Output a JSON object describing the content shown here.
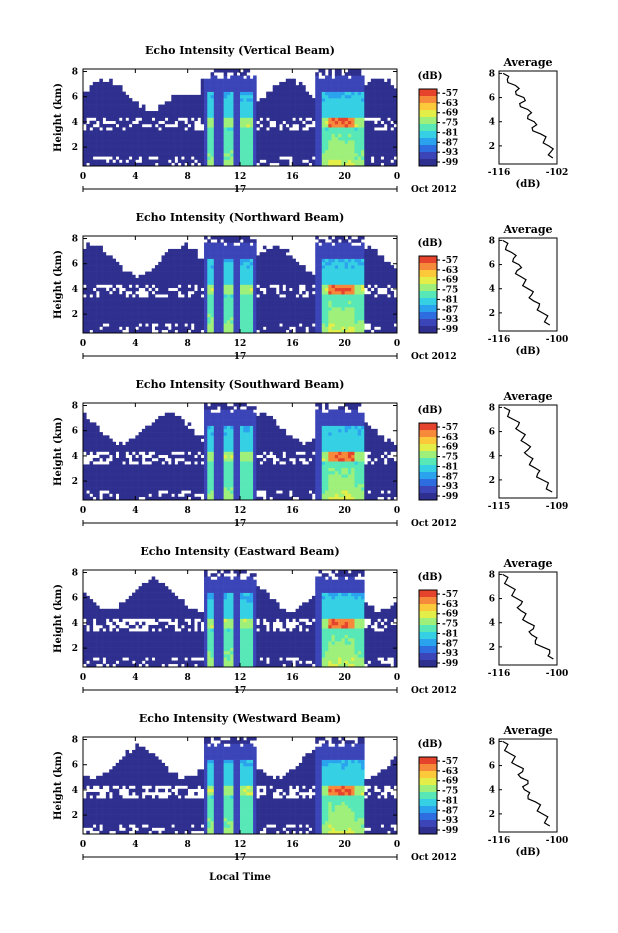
{
  "figure": {
    "xlabel": "Local Time",
    "month_label": "Oct 2012",
    "day_label": "17",
    "colorbar_unit": "(dB)",
    "avg_title": "Average"
  },
  "chart_data": [
    {
      "type": "heatmap",
      "title": "Echo Intensity (Vertical Beam)",
      "ylabel": "Height (km)",
      "xticks": [
        "0",
        "4",
        "8",
        "12",
        "16",
        "20",
        "0"
      ],
      "yticks": [
        "2",
        "4",
        "6",
        "8"
      ],
      "xlim": [
        0,
        24
      ],
      "ylim": [
        0.5,
        8.2
      ],
      "colorbar": {
        "unit": "(dB)",
        "ticks": [
          "-57",
          "-63",
          "-69",
          "-75",
          "-81",
          "-87",
          "-93",
          "-99"
        ]
      },
      "profile": {
        "title": "Average",
        "xlabel": "(dB)",
        "xticks": [
          "-116",
          "-102"
        ],
        "xlim": [
          -116,
          -102
        ],
        "yticks": [
          "2",
          "4",
          "6",
          "8"
        ],
        "heights": [
          1,
          1.5,
          2,
          2.5,
          3,
          3.5,
          4,
          4.5,
          5,
          5.5,
          6,
          6.5,
          7,
          7.5,
          8
        ],
        "values": [
          -103,
          -103.5,
          -104,
          -105,
          -106,
          -108,
          -107.5,
          -109,
          -109,
          -111,
          -110,
          -112,
          -112,
          -114,
          -115
        ]
      }
    },
    {
      "type": "heatmap",
      "title": "Echo Intensity (Northward Beam)",
      "ylabel": "Height (km)",
      "xticks": [
        "0",
        "4",
        "8",
        "12",
        "16",
        "20",
        "0"
      ],
      "yticks": [
        "2",
        "4",
        "6",
        "8"
      ],
      "xlim": [
        0,
        24
      ],
      "ylim": [
        0.5,
        8.2
      ],
      "colorbar": {
        "unit": "(dB)",
        "ticks": [
          "-57",
          "-63",
          "-69",
          "-75",
          "-81",
          "-87",
          "-93",
          "-99"
        ]
      },
      "profile": {
        "title": "Average",
        "xlabel": "(dB)",
        "xticks": [
          "-116",
          "-100"
        ],
        "xlim": [
          -116,
          -100
        ],
        "yticks": [
          "2",
          "4",
          "6",
          "8"
        ],
        "heights": [
          1,
          1.5,
          2,
          2.5,
          3,
          3.5,
          4,
          4.5,
          5,
          5.5,
          6,
          6.5,
          7,
          7.5,
          8
        ],
        "values": [
          -102,
          -103,
          -104,
          -105,
          -106.5,
          -107,
          -108,
          -109,
          -110,
          -111,
          -110.5,
          -112,
          -112.5,
          -114,
          -115
        ]
      }
    },
    {
      "type": "heatmap",
      "title": "Echo Intensity (Southward Beam)",
      "ylabel": "Height (km)",
      "xticks": [
        "0",
        "4",
        "8",
        "12",
        "16",
        "20",
        "0"
      ],
      "yticks": [
        "2",
        "4",
        "6",
        "8"
      ],
      "xlim": [
        0,
        24
      ],
      "ylim": [
        0.5,
        8.2
      ],
      "colorbar": {
        "unit": "(dB)",
        "ticks": [
          "-57",
          "-63",
          "-69",
          "-75",
          "-81",
          "-87",
          "-93",
          "-99"
        ]
      },
      "profile": {
        "title": "Average",
        "xlabel": "",
        "xticks": [
          "-115",
          "-109"
        ],
        "xlim": [
          -115,
          -109
        ],
        "yticks": [
          "2",
          "4",
          "6",
          "8"
        ],
        "heights": [
          1,
          1.5,
          2,
          2.5,
          3,
          3.5,
          4,
          4.5,
          5,
          5.5,
          6,
          6.5,
          7,
          7.5,
          8
        ],
        "values": [
          -109.5,
          -110,
          -110.5,
          -111,
          -111.3,
          -111.7,
          -112,
          -112,
          -112.2,
          -112.5,
          -112.8,
          -113,
          -113.5,
          -114,
          -114.5
        ]
      }
    },
    {
      "type": "heatmap",
      "title": "Echo Intensity (Eastward Beam)",
      "ylabel": "Height (km)",
      "xticks": [
        "0",
        "4",
        "8",
        "12",
        "16",
        "20",
        "0"
      ],
      "yticks": [
        "2",
        "4",
        "6",
        "8"
      ],
      "xlim": [
        0,
        24
      ],
      "ylim": [
        0.5,
        8.2
      ],
      "colorbar": {
        "unit": "(dB)",
        "ticks": [
          "-57",
          "-63",
          "-69",
          "-75",
          "-81",
          "-87",
          "-93",
          "-99"
        ]
      },
      "profile": {
        "title": "Average",
        "xlabel": "",
        "xticks": [
          "-116",
          "-100"
        ],
        "xlim": [
          -116,
          -100
        ],
        "yticks": [
          "2",
          "4",
          "6",
          "8"
        ],
        "heights": [
          1,
          1.5,
          2,
          2.5,
          3,
          3.5,
          4,
          4.5,
          5,
          5.5,
          6,
          6.5,
          7,
          7.5,
          8
        ],
        "values": [
          -101,
          -102,
          -104,
          -106,
          -107,
          -106.5,
          -108,
          -109,
          -110,
          -110,
          -111,
          -112,
          -113,
          -114,
          -115
        ]
      }
    },
    {
      "type": "heatmap",
      "title": "Echo Intensity (Westward Beam)",
      "ylabel": "Height (km)",
      "xticks": [
        "0",
        "4",
        "8",
        "12",
        "16",
        "20",
        "0"
      ],
      "yticks": [
        "2",
        "4",
        "6",
        "8"
      ],
      "xlim": [
        0,
        24
      ],
      "ylim": [
        0.5,
        8.2
      ],
      "colorbar": {
        "unit": "(dB)",
        "ticks": [
          "-57",
          "-63",
          "-69",
          "-75",
          "-81",
          "-87",
          "-93",
          "-99"
        ]
      },
      "profile": {
        "title": "Average",
        "xlabel": "(dB)",
        "xticks": [
          "-116",
          "-100"
        ],
        "xlim": [
          -116,
          -100
        ],
        "yticks": [
          "2",
          "4",
          "6",
          "8"
        ],
        "heights": [
          1,
          1.5,
          2,
          2.5,
          3,
          3.5,
          4,
          4.5,
          5,
          5.5,
          6,
          6.5,
          7,
          7.5,
          8
        ],
        "values": [
          -102,
          -103,
          -104,
          -105,
          -106,
          -108,
          -109,
          -108,
          -110,
          -109.5,
          -111,
          -112,
          -113,
          -114,
          -115
        ]
      }
    }
  ]
}
